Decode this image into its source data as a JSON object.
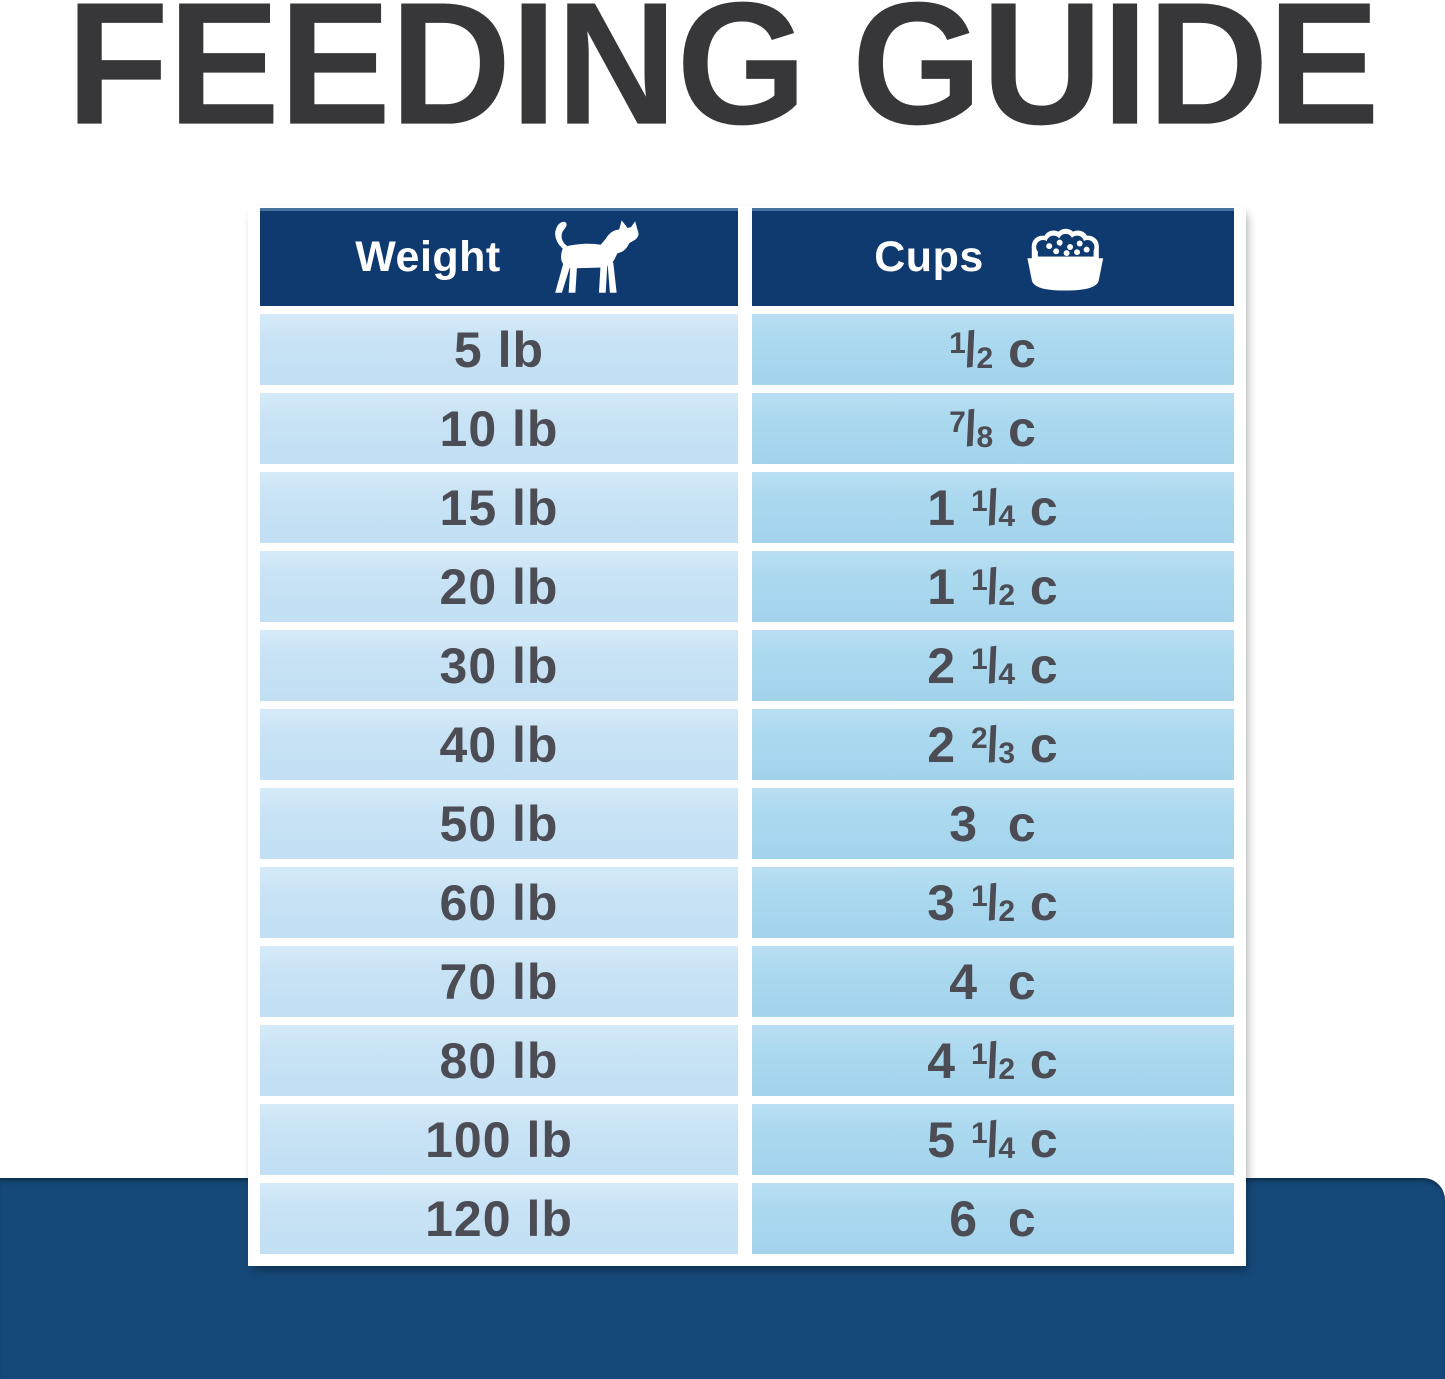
{
  "title": "FEEDING GUIDE",
  "table": {
    "headers": [
      {
        "label": "Weight",
        "icon": "dog-icon"
      },
      {
        "label": "Cups",
        "icon": "food-bowl-icon"
      }
    ],
    "rows": [
      {
        "weight": "5 lb",
        "cups": {
          "whole": "",
          "num": "1",
          "den": "2",
          "unit": "c"
        }
      },
      {
        "weight": "10 lb",
        "cups": {
          "whole": "",
          "num": "7",
          "den": "8",
          "unit": "c"
        }
      },
      {
        "weight": "15 lb",
        "cups": {
          "whole": "1",
          "num": "1",
          "den": "4",
          "unit": "c"
        }
      },
      {
        "weight": "20 lb",
        "cups": {
          "whole": "1",
          "num": "1",
          "den": "2",
          "unit": "c"
        }
      },
      {
        "weight": "30 lb",
        "cups": {
          "whole": "2",
          "num": "1",
          "den": "4",
          "unit": "c"
        }
      },
      {
        "weight": "40 lb",
        "cups": {
          "whole": "2",
          "num": "2",
          "den": "3",
          "unit": "c"
        }
      },
      {
        "weight": "50 lb",
        "cups": {
          "whole": "3",
          "num": "",
          "den": "",
          "unit": "c"
        }
      },
      {
        "weight": "60 lb",
        "cups": {
          "whole": "3",
          "num": "1",
          "den": "2",
          "unit": "c"
        }
      },
      {
        "weight": "70 lb",
        "cups": {
          "whole": "4",
          "num": "",
          "den": "",
          "unit": "c"
        }
      },
      {
        "weight": "80 lb",
        "cups": {
          "whole": "4",
          "num": "1",
          "den": "2",
          "unit": "c"
        }
      },
      {
        "weight": "100 lb",
        "cups": {
          "whole": "5",
          "num": "1",
          "den": "4",
          "unit": "c"
        }
      },
      {
        "weight": "120 lb",
        "cups": {
          "whole": "6",
          "num": "",
          "den": "",
          "unit": "c"
        }
      }
    ]
  },
  "glyphs": {
    "fraction_slash": "/"
  },
  "colors": {
    "title_charcoal": "#37373a",
    "header_navy": "#0e3a70",
    "band_navy": "#15497a",
    "cell_left_blue": "#c8e3f5",
    "cell_right_blue": "#abd9ef",
    "row_text": "#4c4c54"
  },
  "chart_data": {
    "type": "table",
    "title": "FEEDING GUIDE",
    "columns": [
      "Weight",
      "Cups"
    ],
    "rows": [
      [
        "5 lb",
        "1/2 c"
      ],
      [
        "10 lb",
        "7/8 c"
      ],
      [
        "15 lb",
        "1 1/4 c"
      ],
      [
        "20 lb",
        "1 1/2 c"
      ],
      [
        "30 lb",
        "2 1/4 c"
      ],
      [
        "40 lb",
        "2 2/3 c"
      ],
      [
        "50 lb",
        "3 c"
      ],
      [
        "60 lb",
        "3 1/2 c"
      ],
      [
        "70 lb",
        "4 c"
      ],
      [
        "80 lb",
        "4 1/2 c"
      ],
      [
        "100 lb",
        "5 1/4 c"
      ],
      [
        "120 lb",
        "6 c"
      ]
    ],
    "legend_position": "none",
    "grid": false
  }
}
